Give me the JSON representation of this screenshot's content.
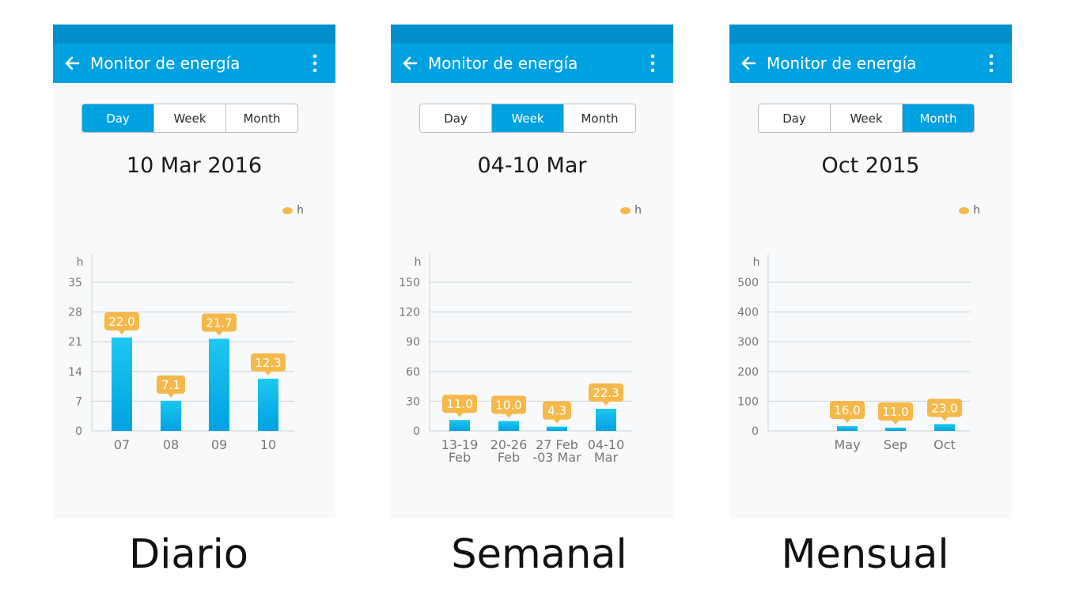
{
  "colors": {
    "statusbar": "#008fcc",
    "appbar": "#00a1e0",
    "bar": "#00a1e0",
    "bar_top": "#1ec8f0",
    "label_bubble": "#f5b84a",
    "grid": "#cfd3d6"
  },
  "icons": {
    "back": "arrow-left-icon",
    "more": "more-vertical-icon",
    "legend": "orange-dot-icon"
  },
  "panels": [
    {
      "appbar_title": "Monitor de energía",
      "tabs": [
        "Day",
        "Week",
        "Month"
      ],
      "active_tab": "Day",
      "period": "10 Mar 2016",
      "legend": "h",
      "caption": "Diario",
      "chart_data": {
        "type": "bar",
        "ylabel": "h",
        "yticks": [
          "0",
          "7",
          "14",
          "21",
          "28",
          "35"
        ],
        "ylim": [
          0,
          35
        ],
        "categories": [
          [
            "07"
          ],
          [
            "08"
          ],
          [
            "09"
          ],
          [
            "10"
          ]
        ],
        "values": [
          22.0,
          7.1,
          21.7,
          12.3
        ],
        "data_labels": [
          "22.0",
          "7.1",
          "21.7",
          "12.3"
        ],
        "grid": true
      }
    },
    {
      "appbar_title": "Monitor de energía",
      "tabs": [
        "Day",
        "Week",
        "Month"
      ],
      "active_tab": "Week",
      "period": "04-10 Mar",
      "legend": "h",
      "caption": "Semanal",
      "chart_data": {
        "type": "bar",
        "ylabel": "h",
        "yticks": [
          "0",
          "30",
          "60",
          "90",
          "120",
          "150"
        ],
        "ylim": [
          0,
          150
        ],
        "categories": [
          [
            "13-19",
            "Feb"
          ],
          [
            "20-26",
            "Feb"
          ],
          [
            "27 Feb",
            "-03 Mar"
          ],
          [
            "04-10",
            "Mar"
          ]
        ],
        "values": [
          11.0,
          10.0,
          4.3,
          22.3
        ],
        "data_labels": [
          "11.0",
          "10.0",
          "4.3",
          "22.3"
        ],
        "grid": true
      }
    },
    {
      "appbar_title": "Monitor de energía",
      "tabs": [
        "Day",
        "Week",
        "Month"
      ],
      "active_tab": "Month",
      "period": "Oct 2015",
      "legend": "h",
      "caption": "Mensual",
      "chart_data": {
        "type": "bar",
        "ylabel": "h",
        "yticks": [
          "0",
          "100",
          "200",
          "300",
          "400",
          "500"
        ],
        "ylim": [
          0,
          500
        ],
        "categories": [
          [
            ""
          ],
          [
            "May"
          ],
          [
            "Sep"
          ],
          [
            "Oct"
          ]
        ],
        "values": [
          null,
          16.0,
          11.0,
          23.0
        ],
        "data_labels": [
          "",
          "16.0",
          "11.0",
          "23.0"
        ],
        "grid": true
      }
    }
  ]
}
